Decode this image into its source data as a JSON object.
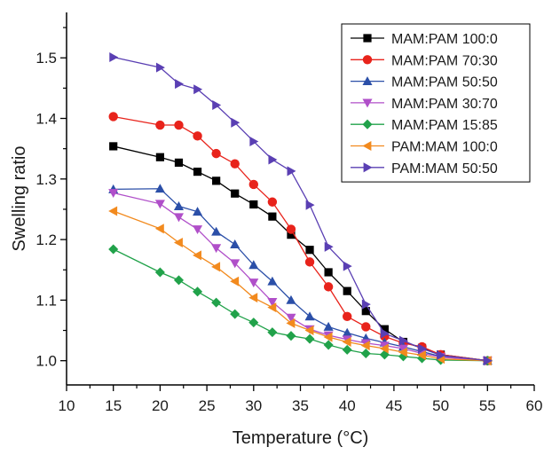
{
  "chart_data": {
    "type": "line",
    "title": "",
    "xlabel": "Temperature (°C)",
    "ylabel": "Swelling ratio",
    "xlim": [
      10,
      60
    ],
    "ylim": [
      0.96,
      1.575
    ],
    "xticks": [
      10,
      15,
      20,
      25,
      30,
      35,
      40,
      45,
      50,
      55,
      60
    ],
    "yticks": [
      1.0,
      1.1,
      1.2,
      1.3,
      1.4,
      1.5
    ],
    "ytick_labels": [
      "1.0",
      "1.1",
      "1.2",
      "1.3",
      "1.4",
      "1.5"
    ],
    "grid": false,
    "legend_position": "top-right",
    "series": [
      {
        "name": "MAM:PAM 100:0",
        "color": "#000000",
        "marker": "square",
        "x": [
          15,
          20,
          22,
          24,
          26,
          28,
          30,
          32,
          34,
          36,
          38,
          40,
          42,
          44,
          46,
          48,
          50,
          55
        ],
        "y": [
          1.354,
          1.336,
          1.327,
          1.312,
          1.297,
          1.276,
          1.258,
          1.238,
          1.208,
          1.183,
          1.146,
          1.115,
          1.082,
          1.052,
          1.031,
          1.021,
          1.01,
          1.0
        ]
      },
      {
        "name": "MAM:PAM 70:30",
        "color": "#e8231b",
        "marker": "circle",
        "x": [
          15,
          20,
          22,
          24,
          26,
          28,
          30,
          32,
          34,
          36,
          38,
          40,
          42,
          44,
          46,
          48,
          50,
          55
        ],
        "y": [
          1.403,
          1.389,
          1.389,
          1.371,
          1.342,
          1.325,
          1.291,
          1.262,
          1.217,
          1.163,
          1.122,
          1.073,
          1.056,
          1.04,
          1.029,
          1.023,
          1.01,
          1.0
        ]
      },
      {
        "name": "MAM:PAM 50:50",
        "color": "#2b4fa8",
        "marker": "triangle-up",
        "x": [
          15,
          20,
          22,
          24,
          26,
          28,
          30,
          32,
          34,
          36,
          38,
          40,
          42,
          44,
          46,
          48,
          50,
          55
        ],
        "y": [
          1.283,
          1.284,
          1.255,
          1.246,
          1.213,
          1.192,
          1.158,
          1.131,
          1.1,
          1.073,
          1.056,
          1.046,
          1.037,
          1.03,
          1.023,
          1.015,
          1.007,
          1.0
        ]
      },
      {
        "name": "MAM:PAM 30:70",
        "color": "#b04fc9",
        "marker": "triangle-down",
        "x": [
          15,
          20,
          22,
          24,
          26,
          28,
          30,
          32,
          34,
          36,
          38,
          40,
          42,
          44,
          46,
          48,
          50,
          55
        ],
        "y": [
          1.277,
          1.259,
          1.237,
          1.217,
          1.186,
          1.161,
          1.129,
          1.097,
          1.071,
          1.052,
          1.042,
          1.035,
          1.029,
          1.025,
          1.02,
          1.012,
          1.006,
          1.0
        ]
      },
      {
        "name": "MAM:PAM 15:85",
        "color": "#21a24a",
        "marker": "diamond",
        "x": [
          15,
          20,
          22,
          24,
          26,
          28,
          30,
          32,
          34,
          36,
          38,
          40,
          42,
          44,
          46,
          48,
          50,
          55
        ],
        "y": [
          1.184,
          1.146,
          1.133,
          1.114,
          1.096,
          1.077,
          1.063,
          1.047,
          1.041,
          1.036,
          1.026,
          1.018,
          1.012,
          1.01,
          1.007,
          1.004,
          1.001,
          1.0
        ]
      },
      {
        "name": "PAM:MAM 100:0",
        "color": "#f28a1e",
        "marker": "triangle-left",
        "x": [
          15,
          20,
          22,
          24,
          26,
          28,
          30,
          32,
          34,
          36,
          38,
          40,
          42,
          44,
          46,
          48,
          50,
          55
        ],
        "y": [
          1.247,
          1.218,
          1.195,
          1.174,
          1.155,
          1.131,
          1.104,
          1.088,
          1.062,
          1.05,
          1.039,
          1.031,
          1.025,
          1.02,
          1.014,
          1.009,
          1.003,
          1.0
        ]
      },
      {
        "name": "PAM:MAM 50:50",
        "color": "#5a3fb3",
        "marker": "triangle-right",
        "x": [
          15,
          20,
          22,
          24,
          26,
          28,
          30,
          32,
          34,
          36,
          38,
          40,
          42,
          44,
          46,
          48,
          50,
          55
        ],
        "y": [
          1.501,
          1.484,
          1.457,
          1.448,
          1.422,
          1.393,
          1.362,
          1.332,
          1.313,
          1.257,
          1.188,
          1.156,
          1.093,
          1.045,
          1.033,
          1.02,
          1.009,
          1.0
        ]
      }
    ]
  }
}
